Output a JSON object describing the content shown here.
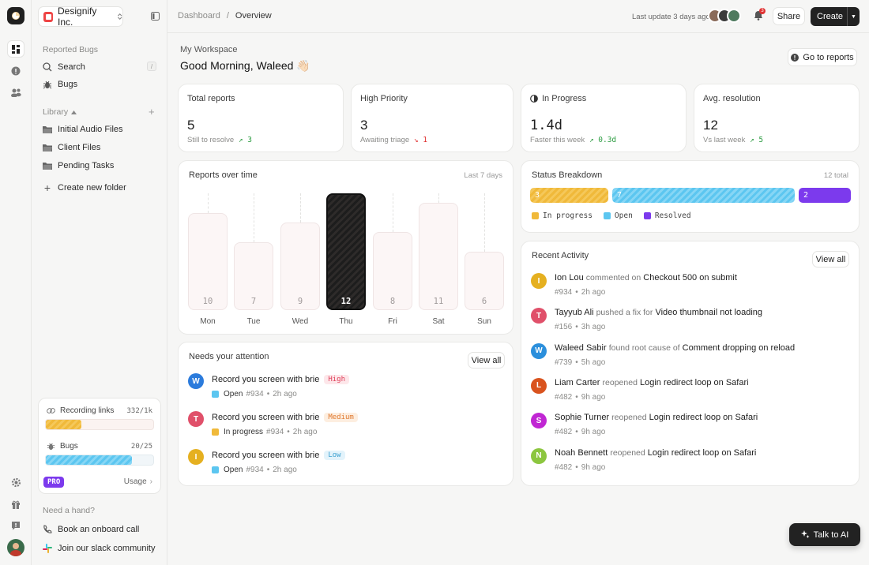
{
  "org": {
    "name": "Designify Inc."
  },
  "sidebar": {
    "reported_title": "Reported Bugs",
    "search_label": "Search",
    "search_shortcut": "/",
    "bugs_label": "Bugs",
    "library_title": "Library",
    "folders": [
      "Initial Audio Files",
      "Client Files",
      "Pending Tasks"
    ],
    "create_folder": "Create new folder",
    "usage": {
      "recording": {
        "label": "Recording links",
        "value": "332/1k",
        "fraction": 0.332
      },
      "bugs": {
        "label": "Bugs",
        "value": "20/25",
        "fraction": 0.8
      },
      "plan": "PRO",
      "usage_label": "Usage"
    },
    "help_title": "Need a hand?",
    "help_items": [
      "Book an onboard call",
      "Join our slack community"
    ]
  },
  "topbar": {
    "breadcrumb_root": "Dashboard",
    "breadcrumb_sep": "/",
    "breadcrumb_current": "Overview",
    "last_update": "Last update 3 days ago",
    "notif_count": "3",
    "share": "Share",
    "create": "Create"
  },
  "header": {
    "workspace": "My Workspace",
    "greeting": "Good Morning, Waleed",
    "greeting_emoji": "👋🏻",
    "reports_button": "Go to reports"
  },
  "stats": [
    {
      "title": "Total reports",
      "value": "5",
      "sub": "Still to resolve",
      "trend": "↗ 3",
      "trend_color": "#2f9e44",
      "mono": false
    },
    {
      "title": "High Priority",
      "value": "3",
      "sub": "Awaiting triage",
      "trend": "↘ 1",
      "trend_color": "#e03131",
      "mono": false
    },
    {
      "title": "In Progress",
      "value": "1.4d",
      "sub": "Faster this week",
      "trend": "↗ 0.3d",
      "trend_color": "#2f9e44",
      "mono": true
    },
    {
      "title": "Avg. resolution",
      "value": "12",
      "sub": "Vs last week",
      "trend": "↗ 5",
      "trend_color": "#2f9e44",
      "mono": false
    }
  ],
  "reports_chart": {
    "title": "Reports over time",
    "range": "Last 7 days",
    "chart_data": {
      "type": "bar",
      "categories": [
        "Mon",
        "Tue",
        "Wed",
        "Thu",
        "Fri",
        "Sat",
        "Sun"
      ],
      "values": [
        10,
        7,
        9,
        12,
        8,
        11,
        6
      ],
      "highlight": "Thu",
      "ylim": [
        0,
        12
      ]
    }
  },
  "status": {
    "title": "Status Breakdown",
    "total": "12 total",
    "segments": [
      {
        "label": "In progress",
        "value": 3,
        "display": "3",
        "color": "#f0b93a"
      },
      {
        "label": "Open",
        "value": 7,
        "display": "7",
        "color": "#5cc6f0"
      },
      {
        "label": "Resolved",
        "value": 2,
        "display": "2",
        "color": "#7c3aed"
      }
    ]
  },
  "attention": {
    "title": "Needs your attention",
    "view_all": "View all",
    "items": [
      {
        "initial": "W",
        "avatar_color": "#2b7bdc",
        "title": "Record you screen with brie",
        "priority": "High",
        "pri_bg": "#fde7ea",
        "pri_fg": "#e0405a",
        "status": "Open",
        "status_color": "#5cc6f0",
        "id": "#934",
        "time": "2h ago"
      },
      {
        "initial": "T",
        "avatar_color": "#e0506a",
        "title": "Record you screen with brie",
        "priority": "Medium",
        "pri_bg": "#fdeee0",
        "pri_fg": "#e07a30",
        "status": "In progress",
        "status_color": "#f0b93a",
        "id": "#934",
        "time": "2h ago"
      },
      {
        "initial": "I",
        "avatar_color": "#e5b020",
        "title": "Record you screen with brie",
        "priority": "Low",
        "pri_bg": "#e3f3fb",
        "pri_fg": "#3aa0d0",
        "status": "Open",
        "status_color": "#5cc6f0",
        "id": "#934",
        "time": "2h ago"
      }
    ]
  },
  "activity": {
    "title": "Recent Activity",
    "view_all": "View all",
    "items": [
      {
        "initial": "I",
        "color": "#e5b020",
        "name": "Ion Lou",
        "verb": "commented on",
        "target": "Checkout 500 on submit",
        "id": "#934",
        "time": "2h ago"
      },
      {
        "initial": "T",
        "color": "#e0506a",
        "name": "Tayyub Ali",
        "verb": "pushed a fix for",
        "target": "Video thumbnail not loading",
        "id": "#156",
        "time": "3h ago"
      },
      {
        "initial": "W",
        "color": "#2b8fdc",
        "name": "Waleed Sabir",
        "verb": "found root cause of",
        "target": "Comment dropping on reload",
        "id": "#739",
        "time": "5h ago"
      },
      {
        "initial": "L",
        "color": "#d9531e",
        "name": "Liam Carter",
        "verb": "reopened",
        "target": "Login redirect loop on Safari",
        "id": "#482",
        "time": "9h ago"
      },
      {
        "initial": "S",
        "color": "#c026d3",
        "name": "Sophie Turner",
        "verb": "reopened",
        "target": "Login redirect loop on Safari",
        "id": "#482",
        "time": "9h ago"
      },
      {
        "initial": "N",
        "color": "#8cc63f",
        "name": "Noah Bennett",
        "verb": "reopened",
        "target": "Login redirect loop on Safari",
        "id": "#482",
        "time": "9h ago"
      }
    ]
  },
  "ai_button": "Talk to AI"
}
